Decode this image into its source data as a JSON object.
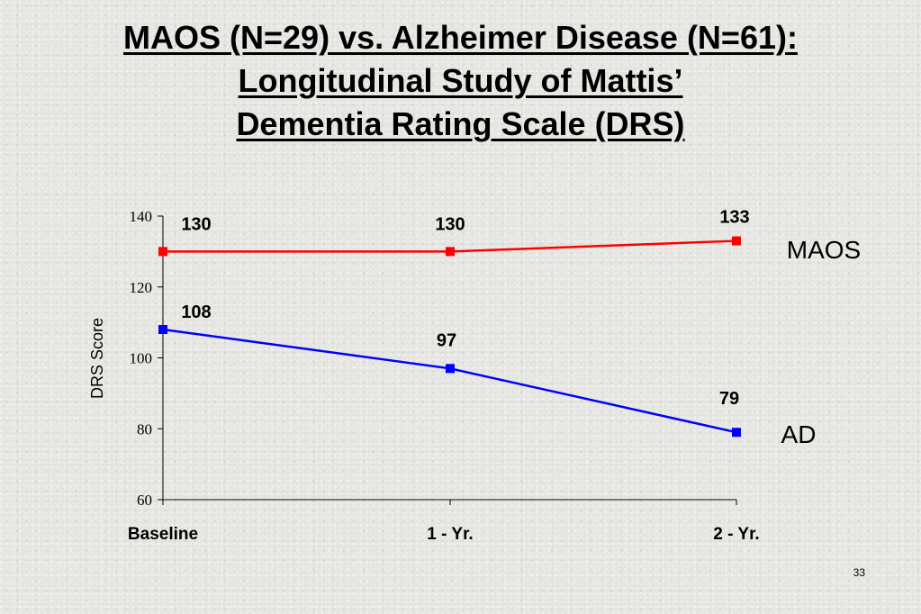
{
  "title": {
    "line1": "MAOS (N=29) vs. Alzheimer Disease (N=61):",
    "line2": "Longitudinal Study of Mattis’",
    "line3": "Dementia Rating Scale (DRS)"
  },
  "slide_number": "33",
  "chart_data": {
    "type": "line",
    "categories": [
      "Baseline",
      "1 - Yr.",
      "2 - Yr."
    ],
    "series": [
      {
        "name": "MAOS",
        "values": [
          130,
          130,
          133
        ],
        "color": "#ff0000"
      },
      {
        "name": "AD",
        "values": [
          108,
          97,
          79
        ],
        "color": "#0000ff"
      }
    ],
    "data_labels": {
      "MAOS": [
        "130",
        "130",
        "133"
      ],
      "AD": [
        "108",
        "97",
        "79"
      ]
    },
    "xlabel": "",
    "ylabel": "DRS Score",
    "ylim": [
      60,
      140
    ],
    "yticks": [
      "60",
      "80",
      "100",
      "120",
      "140"
    ],
    "grid": false,
    "legend": "series labels at right end of lines"
  }
}
